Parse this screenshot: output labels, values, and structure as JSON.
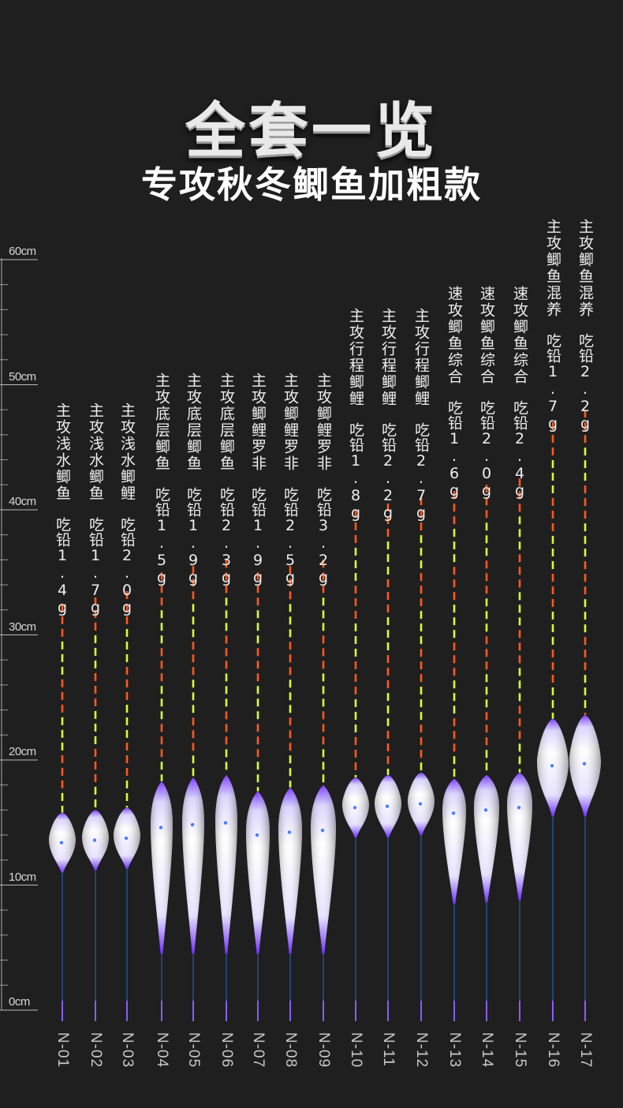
{
  "header": {
    "title": "全套一览",
    "subtitle": "专攻秋冬鲫鱼加粗款"
  },
  "ruler": {
    "labels": [
      "60cm",
      "50cm",
      "40cm",
      "30cm",
      "20cm",
      "10cm",
      "0cm"
    ]
  },
  "colors": {
    "background": "#1f1f1f",
    "antenna_orange": "#ff5a1f",
    "antenna_yellow": "#d8ff3a",
    "float_body": "#f2f2f2",
    "float_accent": "#8a5cff",
    "stem_blue": "#2a7fff"
  },
  "floats": [
    {
      "code": "N-01",
      "desc": "主攻浅水鲫鱼",
      "weight": "吃铅1.4g"
    },
    {
      "code": "N-02",
      "desc": "主攻浅水鲫鱼",
      "weight": "吃铅1.7g"
    },
    {
      "code": "N-03",
      "desc": "主攻浅水鲫鲤",
      "weight": "吃铅2.0g"
    },
    {
      "code": "N-04",
      "desc": "主攻底层鲫鱼",
      "weight": "吃铅1.5g"
    },
    {
      "code": "N-05",
      "desc": "主攻底层鲫鱼",
      "weight": "吃铅1.9g"
    },
    {
      "code": "N-06",
      "desc": "主攻底层鲫鱼",
      "weight": "吃铅2.3g"
    },
    {
      "code": "N-07",
      "desc": "主攻鲫鲤罗非",
      "weight": "吃铅1.9g"
    },
    {
      "code": "N-08",
      "desc": "主攻鲫鲤罗非",
      "weight": "吃铅2.5g"
    },
    {
      "code": "N-09",
      "desc": "主攻鲫鲤罗非",
      "weight": "吃铅3.2g"
    },
    {
      "code": "N-10",
      "desc": "主攻行程鲫鲤",
      "weight": "吃铅1.8g"
    },
    {
      "code": "N-11",
      "desc": "主攻行程鲫鲤",
      "weight": "吃铅2.2g"
    },
    {
      "code": "N-12",
      "desc": "主攻行程鲫鲤",
      "weight": "吃铅2.7g"
    },
    {
      "code": "N-13",
      "desc": "速攻鲫鱼综合",
      "weight": "吃铅1.6g"
    },
    {
      "code": "N-14",
      "desc": "速攻鲫鱼综合",
      "weight": "吃铅2.0g"
    },
    {
      "code": "N-15",
      "desc": "速攻鲫鱼综合",
      "weight": "吃铅2.4g"
    },
    {
      "code": "N-16",
      "desc": "主攻鲫鱼混养",
      "weight": "吃铅1.7g"
    },
    {
      "code": "N-17",
      "desc": "主攻鲫鱼混养",
      "weight": "吃铅2.2g"
    }
  ]
}
